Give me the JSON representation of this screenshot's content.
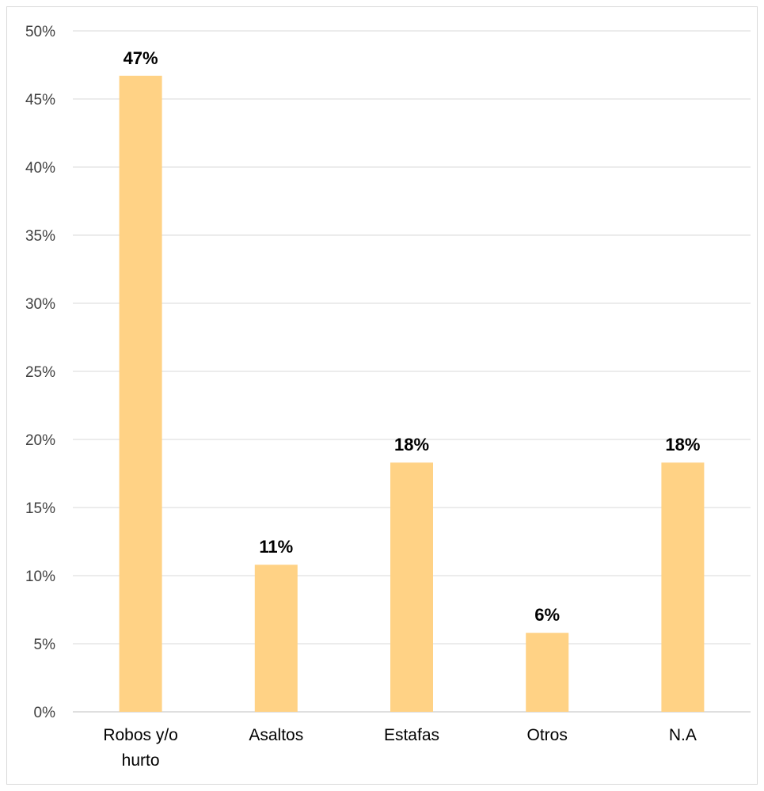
{
  "chart_data": {
    "type": "bar",
    "title": "",
    "xlabel": "",
    "ylabel": "",
    "categories": [
      [
        "Robos y/o",
        "hurto"
      ],
      [
        "Asaltos"
      ],
      [
        "Estafas"
      ],
      [
        "Otros"
      ],
      [
        "N.A"
      ]
    ],
    "values": [
      46.7,
      10.8,
      18.3,
      5.8,
      18.3
    ],
    "data_labels": [
      "47%",
      "11%",
      "18%",
      "6%",
      "18%"
    ],
    "ylim": [
      0,
      50
    ],
    "yticks": [
      0,
      5,
      10,
      15,
      20,
      25,
      30,
      35,
      40,
      45,
      50
    ],
    "ytick_labels": [
      "0%",
      "5%",
      "10%",
      "15%",
      "20%",
      "25%",
      "30%",
      "35%",
      "40%",
      "45%",
      "50%"
    ],
    "grid": true,
    "legend": "none",
    "colors": {
      "bar": "#FFD285",
      "grid": "#d9d9d9",
      "axis": "#bfbfbf"
    }
  }
}
